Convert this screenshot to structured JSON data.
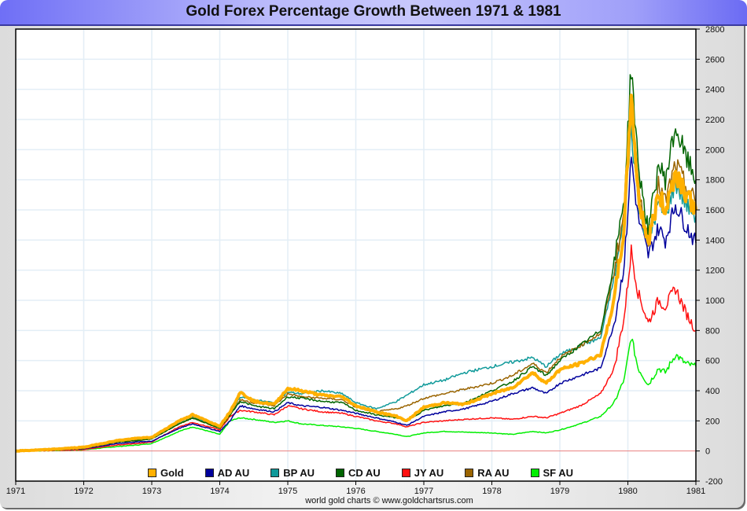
{
  "chart_data": {
    "type": "line",
    "title": "Gold Forex Percentage Growth Between 1971 & 1981",
    "xlabel": "",
    "ylabel": "",
    "xlim": [
      1971,
      1981
    ],
    "ylim": [
      -200,
      2800
    ],
    "x_ticks": [
      "1971",
      "1972",
      "1973",
      "1974",
      "1975",
      "1976",
      "1977",
      "1978",
      "1979",
      "1980",
      "1981"
    ],
    "y_ticks": [
      "2800",
      "2600",
      "2400",
      "2200",
      "2000",
      "1800",
      "1600",
      "1400",
      "1200",
      "1000",
      "800",
      "600",
      "400",
      "200",
      "0",
      "-200"
    ],
    "grid": true,
    "legend_position": "bottom",
    "credit": "world gold charts © www.goldchartsrus.com",
    "x": [
      1971.0,
      1971.5,
      1972.0,
      1972.5,
      1972.8,
      1973.0,
      1973.4,
      1973.6,
      1974.0,
      1974.15,
      1974.3,
      1974.5,
      1974.8,
      1975.0,
      1975.2,
      1975.5,
      1975.8,
      1976.0,
      1976.3,
      1976.6,
      1976.75,
      1977.0,
      1977.3,
      1977.6,
      1978.0,
      1978.3,
      1978.6,
      1978.8,
      1979.0,
      1979.3,
      1979.6,
      1979.8,
      1979.95,
      1980.05,
      1980.15,
      1980.3,
      1980.45,
      1980.55,
      1980.7,
      1980.85,
      1981.0
    ],
    "series": [
      {
        "name": "Gold",
        "color": "#ffb000",
        "width": 4,
        "values": [
          0,
          10,
          25,
          70,
          85,
          90,
          200,
          240,
          165,
          260,
          390,
          330,
          310,
          415,
          400,
          370,
          360,
          300,
          260,
          230,
          200,
          290,
          320,
          310,
          380,
          420,
          520,
          450,
          540,
          580,
          640,
          1000,
          1500,
          2380,
          1700,
          1380,
          1700,
          1600,
          1850,
          1720,
          1600
        ]
      },
      {
        "name": "AD AU",
        "color": "#00009c",
        "width": 1.5,
        "values": [
          0,
          5,
          15,
          50,
          60,
          65,
          150,
          180,
          130,
          200,
          300,
          280,
          260,
          320,
          300,
          290,
          270,
          250,
          220,
          190,
          170,
          230,
          260,
          280,
          330,
          380,
          420,
          380,
          450,
          500,
          550,
          850,
          1250,
          1950,
          1550,
          1300,
          1480,
          1400,
          1640,
          1500,
          1380
        ]
      },
      {
        "name": "BP AU",
        "color": "#109a9a",
        "width": 1.5,
        "values": [
          0,
          8,
          20,
          65,
          75,
          85,
          190,
          230,
          155,
          250,
          360,
          340,
          320,
          390,
          380,
          400,
          380,
          320,
          280,
          330,
          370,
          440,
          470,
          520,
          560,
          590,
          620,
          560,
          640,
          700,
          750,
          1150,
          1550,
          2150,
          1650,
          1380,
          1640,
          1560,
          1780,
          1640,
          1560
        ]
      },
      {
        "name": "CD AU",
        "color": "#006400",
        "width": 1.5,
        "values": [
          0,
          6,
          18,
          60,
          70,
          80,
          180,
          220,
          150,
          240,
          330,
          300,
          280,
          360,
          350,
          330,
          320,
          270,
          240,
          220,
          200,
          270,
          300,
          320,
          400,
          460,
          560,
          500,
          600,
          700,
          800,
          1250,
          1700,
          2560,
          1900,
          1460,
          1900,
          1800,
          2150,
          1950,
          1800
        ]
      },
      {
        "name": "JY AU",
        "color": "#ff1010",
        "width": 1.5,
        "values": [
          0,
          3,
          10,
          40,
          50,
          60,
          160,
          190,
          140,
          230,
          270,
          260,
          240,
          300,
          280,
          260,
          250,
          230,
          200,
          180,
          160,
          190,
          200,
          210,
          220,
          210,
          230,
          220,
          250,
          300,
          380,
          550,
          900,
          1330,
          1050,
          850,
          1000,
          960,
          1080,
          920,
          800
        ]
      },
      {
        "name": "RA AU",
        "color": "#9a6400",
        "width": 1.5,
        "values": [
          0,
          6,
          18,
          60,
          70,
          80,
          180,
          220,
          150,
          240,
          340,
          320,
          300,
          380,
          360,
          350,
          340,
          290,
          260,
          280,
          300,
          350,
          380,
          410,
          450,
          500,
          580,
          520,
          620,
          700,
          780,
          1200,
          1600,
          2350,
          1750,
          1400,
          1760,
          1650,
          1900,
          1760,
          1650
        ]
      },
      {
        "name": "SF AU",
        "color": "#00ee00",
        "width": 1.5,
        "values": [
          0,
          2,
          8,
          30,
          40,
          50,
          130,
          160,
          110,
          200,
          220,
          210,
          190,
          200,
          180,
          170,
          160,
          150,
          130,
          110,
          95,
          120,
          130,
          125,
          120,
          110,
          130,
          120,
          140,
          180,
          230,
          320,
          480,
          760,
          550,
          440,
          550,
          520,
          640,
          580,
          560
        ]
      }
    ]
  }
}
